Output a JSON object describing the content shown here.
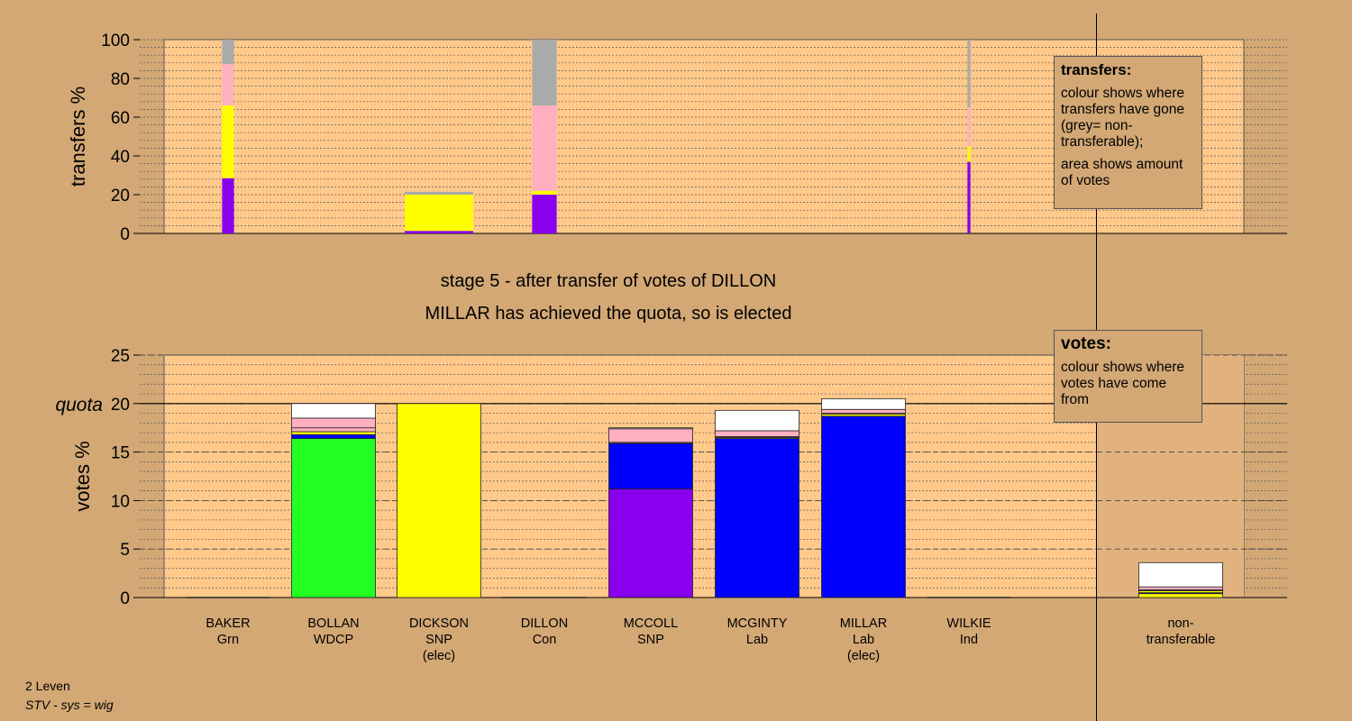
{
  "stage": {
    "line1": "stage 5 - after transfer of votes of DILLON",
    "line2": "MILLAR has achieved the quota, so is elected"
  },
  "footer": {
    "line1": "2 Leven",
    "line2": "STV - sys = wig"
  },
  "legends": {
    "transfers": {
      "title": "transfers:",
      "p1": "colour shows where transfers have gone (grey= non-transferable);",
      "p2": "area shows amount of votes"
    },
    "votes": {
      "title": "votes:",
      "p1": "colour shows where votes have come from"
    }
  },
  "colors": {
    "background": "#d3a875",
    "plot_bg": "#ffc98b",
    "WDCP": "#8800ee",
    "SNP": "#ffff00",
    "Lab": "#ffb0c0",
    "Grn": "#22ff22",
    "Con": "#0000ff",
    "Ind": "#ffffff",
    "nontransferable": "#aaaaaa"
  },
  "chart_data": [
    {
      "type": "bar",
      "stacked": true,
      "ylabel": "transfers %",
      "ylim": [
        0,
        100
      ],
      "yticks": [
        0,
        20,
        40,
        60,
        80,
        100
      ],
      "grid": true,
      "candidates": [
        "BAKER",
        "BOLLAN",
        "DICKSON",
        "DILLON",
        "MCCOLL",
        "MCGINTY",
        "MILLAR",
        "WILKIE"
      ],
      "bars": [
        {
          "candidate": "BAKER",
          "width_share": 0.8,
          "segments": [
            {
              "to": "WDCP",
              "value": 28.5
            },
            {
              "to": "SNP",
              "value": 37.5
            },
            {
              "to": "Lab",
              "value": 21.5
            },
            {
              "to": "nontransferable",
              "value": 12.5
            }
          ]
        },
        {
          "candidate": "DICKSON",
          "width_share": 4.6,
          "segments": [
            {
              "to": "WDCP",
              "value": 1.3
            },
            {
              "to": "SNP",
              "value": 18.7
            },
            {
              "to": "nontransferable",
              "value": 1.5
            }
          ]
        },
        {
          "candidate": "DILLON",
          "width_share": 1.65,
          "segments": [
            {
              "to": "WDCP",
              "value": 20
            },
            {
              "to": "SNP",
              "value": 2
            },
            {
              "to": "Lab",
              "value": 44
            },
            {
              "to": "nontransferable",
              "value": 34
            }
          ]
        },
        {
          "candidate": "WILKIE",
          "width_share": 0.2,
          "segments": [
            {
              "to": "WDCP",
              "value": 37
            },
            {
              "to": "SNP",
              "value": 8
            },
            {
              "to": "Lab",
              "value": 20
            },
            {
              "to": "nontransferable",
              "value": 35
            }
          ]
        }
      ]
    },
    {
      "type": "bar",
      "stacked": true,
      "ylabel": "votes %",
      "ylim": [
        0,
        25
      ],
      "yticks": [
        0,
        5,
        10,
        15,
        20,
        25
      ],
      "quota": 20,
      "quota_label": "quota",
      "grid": true,
      "categories": [
        {
          "name": "BAKER",
          "party": "Grn",
          "note": ""
        },
        {
          "name": "BOLLAN",
          "party": "WDCP",
          "note": ""
        },
        {
          "name": "DICKSON",
          "party": "SNP",
          "note": "(elec)"
        },
        {
          "name": "DILLON",
          "party": "Con",
          "note": ""
        },
        {
          "name": "MCCOLL",
          "party": "SNP",
          "note": ""
        },
        {
          "name": "MCGINTY",
          "party": "Lab",
          "note": ""
        },
        {
          "name": "MILLAR",
          "party": "Lab",
          "note": "(elec)"
        },
        {
          "name": "WILKIE",
          "party": "Ind",
          "note": ""
        },
        {
          "name": "non-",
          "party": "transferable",
          "note": ""
        }
      ],
      "series": [
        {
          "name": "BAKER",
          "values": [
            0,
            16.4,
            0,
            0,
            0,
            0,
            0,
            0,
            0
          ]
        },
        {
          "name": "BOLLAN",
          "values": [
            0,
            0,
            0,
            0,
            11.2,
            0,
            0,
            0,
            0
          ]
        },
        {
          "name": "DICKSON",
          "values": [
            0,
            0,
            20,
            0,
            0,
            0,
            0,
            0,
            0.4
          ]
        },
        {
          "name": "DILLON",
          "values": [
            0,
            0.4,
            0,
            0,
            4.7,
            16.4,
            18.7,
            0,
            0.1
          ]
        },
        {
          "name": "MCCOLL",
          "values": [
            0,
            0.3,
            0,
            0,
            0.1,
            0.1,
            0.2,
            0,
            0.2
          ]
        },
        {
          "name": "MCGINTY",
          "values": [
            0,
            0.4,
            0,
            0,
            0,
            0.1,
            0.1,
            0,
            0.1
          ]
        },
        {
          "name": "MILLAR",
          "values": [
            0,
            1.0,
            0,
            0,
            1.4,
            0.6,
            0.4,
            0,
            0.3
          ]
        },
        {
          "name": "WILKIE",
          "values": [
            0,
            1.5,
            0,
            0,
            0.1,
            2.1,
            1.1,
            0,
            2.5
          ]
        }
      ]
    }
  ]
}
